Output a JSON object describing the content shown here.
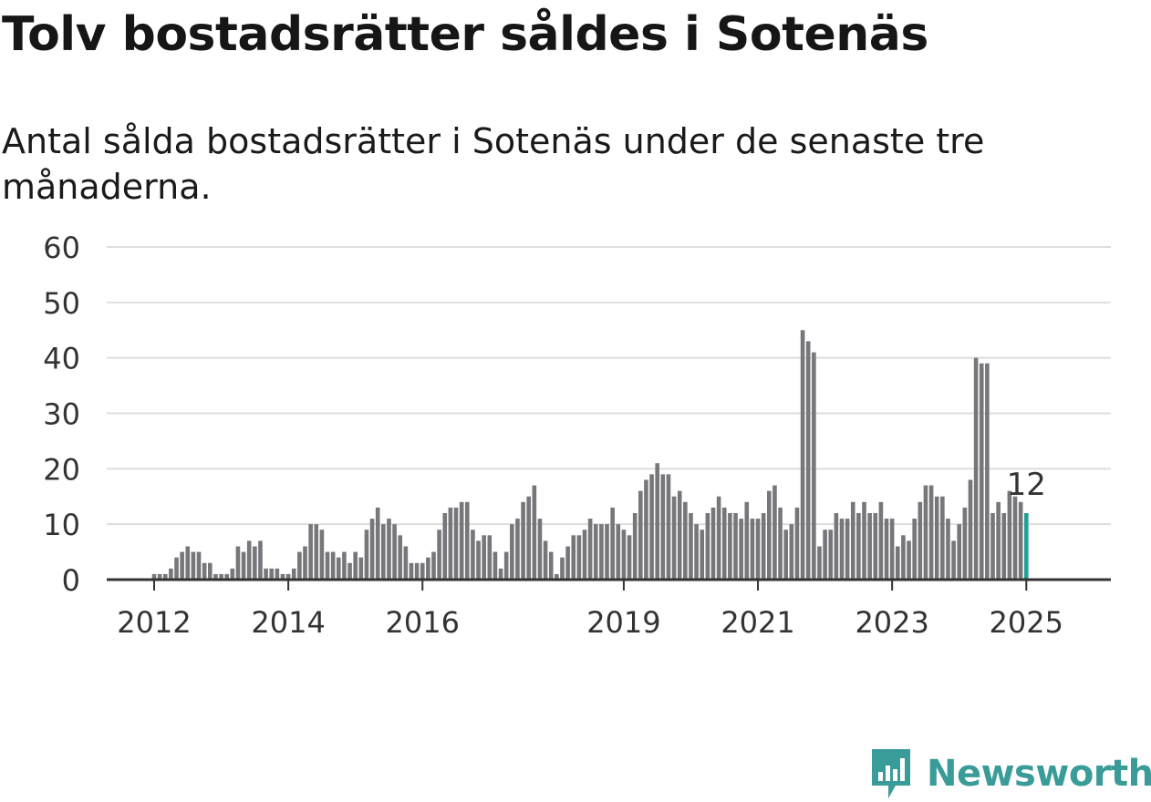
{
  "title": "Tolv bostadsrätter såldes i Sotenäs",
  "subtitle": "Antal sålda bostadsrätter i Sotenäs under de senaste tre månaderna.",
  "brand": {
    "name": "Newsworthy",
    "icon": "newsworthy-logo-icon"
  },
  "colors": {
    "bar": "#76767b",
    "highlight": "#21a097",
    "grid": "#dedede",
    "axis": "#333333",
    "brand": "#3a9c98"
  },
  "chart_data": {
    "type": "bar",
    "title": "Tolv bostadsrätter såldes i Sotenäs",
    "subtitle": "Antal sålda bostadsrätter i Sotenäs under de senaste tre månaderna.",
    "xlabel": "",
    "ylabel": "",
    "ylim": [
      0,
      60
    ],
    "yticks": [
      0,
      10,
      20,
      30,
      40,
      50,
      60
    ],
    "grid": true,
    "x_start": "2012-01",
    "xticks": [
      {
        "label": "2012",
        "month": "2012-01"
      },
      {
        "label": "2014",
        "month": "2014-01"
      },
      {
        "label": "2016",
        "month": "2016-01"
      },
      {
        "label": "2019",
        "month": "2019-01"
      },
      {
        "label": "2021",
        "month": "2021-01"
      },
      {
        "label": "2023",
        "month": "2023-01"
      },
      {
        "label": "2025",
        "month": "2025-01"
      }
    ],
    "highlight": {
      "month": "2025-01",
      "value": 12,
      "label": "12"
    },
    "values": [
      1,
      1,
      1,
      2,
      4,
      5,
      6,
      5,
      5,
      3,
      3,
      1,
      1,
      1,
      2,
      6,
      5,
      7,
      6,
      7,
      2,
      2,
      2,
      1,
      1,
      2,
      5,
      6,
      10,
      10,
      9,
      5,
      5,
      4,
      5,
      3,
      5,
      4,
      9,
      11,
      13,
      10,
      11,
      10,
      8,
      6,
      3,
      3,
      3,
      4,
      5,
      9,
      12,
      13,
      13,
      14,
      14,
      9,
      7,
      8,
      8,
      5,
      2,
      5,
      10,
      11,
      14,
      15,
      17,
      11,
      7,
      5,
      1,
      4,
      6,
      8,
      8,
      9,
      11,
      10,
      10,
      10,
      13,
      10,
      9,
      8,
      12,
      16,
      18,
      19,
      21,
      19,
      19,
      15,
      16,
      14,
      12,
      10,
      9,
      12,
      13,
      15,
      13,
      12,
      12,
      11,
      14,
      11,
      11,
      12,
      16,
      17,
      13,
      9,
      10,
      13,
      45,
      43,
      41,
      6,
      9,
      9,
      12,
      11,
      11,
      14,
      12,
      14,
      12,
      12,
      14,
      11,
      11,
      6,
      8,
      7,
      11,
      14,
      17,
      17,
      15,
      15,
      11,
      7,
      10,
      13,
      18,
      40,
      39,
      39,
      12,
      14,
      12,
      16,
      15,
      14,
      12
    ]
  }
}
